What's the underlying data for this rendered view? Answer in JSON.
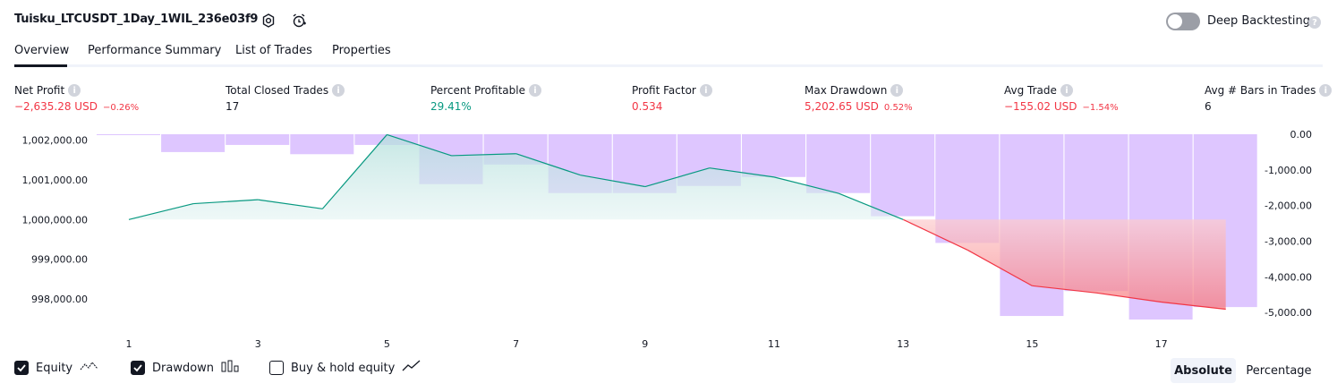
{
  "header": {
    "strategy_name": "Tuisku_LTCUSDT_1Day_1WIL_236e03f9",
    "deep_backtesting_label": "Deep Backtesting",
    "deep_backtesting_enabled": false
  },
  "tabs": [
    {
      "label": "Overview",
      "active": true
    },
    {
      "label": "Performance Summary",
      "active": false
    },
    {
      "label": "List of Trades",
      "active": false
    },
    {
      "label": "Properties",
      "active": false
    }
  ],
  "metrics": [
    {
      "label": "Net Profit",
      "value": "−2,635.28 USD",
      "percent": "−0.26%",
      "color": "#f23645"
    },
    {
      "label": "Total Closed Trades",
      "value": "17",
      "percent": "",
      "color": "#131722"
    },
    {
      "label": "Percent Profitable",
      "value": "29.41%",
      "percent": "",
      "color": "#089981"
    },
    {
      "label": "Profit Factor",
      "value": "0.534",
      "percent": "",
      "color": "#f23645"
    },
    {
      "label": "Max Drawdown",
      "value": "5,202.65 USD",
      "percent": "0.52%",
      "color": "#f23645"
    },
    {
      "label": "Avg Trade",
      "value": "−155.02 USD",
      "percent": "−1.54%",
      "color": "#f23645"
    },
    {
      "label": "Avg # Bars in Trades",
      "value": "6",
      "percent": "",
      "color": "#131722"
    }
  ],
  "chart_data": {
    "type": "line",
    "x": [
      1,
      2,
      3,
      4,
      5,
      6,
      7,
      8,
      9,
      10,
      11,
      12,
      13,
      14,
      15,
      16,
      17,
      18
    ],
    "x_tick_labels": [
      "1",
      "3",
      "5",
      "7",
      "9",
      "11",
      "13",
      "15",
      "17"
    ],
    "series": [
      {
        "axis": "left",
        "color": "#089981",
        "values": [
          1000000,
          1000400,
          1000500,
          1000270,
          1002140,
          1001610,
          1001660,
          1001120,
          1000830,
          1001300,
          1001070,
          1000660,
          1000000,
          999230,
          998330,
          998150,
          997920,
          997740
        ]
      },
      {
        "axis": "right",
        "color": "#c9a3ff",
        "values": [
          0,
          -500,
          -300,
          -560,
          -300,
          -1400,
          -850,
          -1650,
          -1650,
          -1450,
          -1200,
          -1650,
          -2300,
          -3050,
          -5100,
          -4400,
          -5200,
          -4850
        ]
      }
    ],
    "y_left_ticks": [
      "1,002,000.00",
      "1,001,000.00",
      "1,000,000.00",
      "999,000.00",
      "998,000.00"
    ],
    "y_right_ticks": [
      "0.00",
      "-1,000.00",
      "-2,000.00",
      "-3,000.00",
      "-4,000.00",
      "-5,000.00"
    ],
    "y_left_range": [
      997300,
      1002150
    ],
    "y_right_range": [
      -5400,
      0
    ],
    "grid": false
  },
  "legend": {
    "equity_label": "Equity",
    "equity_checked": true,
    "drawdown_label": "Drawdown",
    "drawdown_checked": true,
    "buyhold_label": "Buy & hold equity",
    "buyhold_checked": false
  },
  "scale_toggle": {
    "absolute_label": "Absolute",
    "percentage_label": "Percentage",
    "selected": "Absolute"
  }
}
